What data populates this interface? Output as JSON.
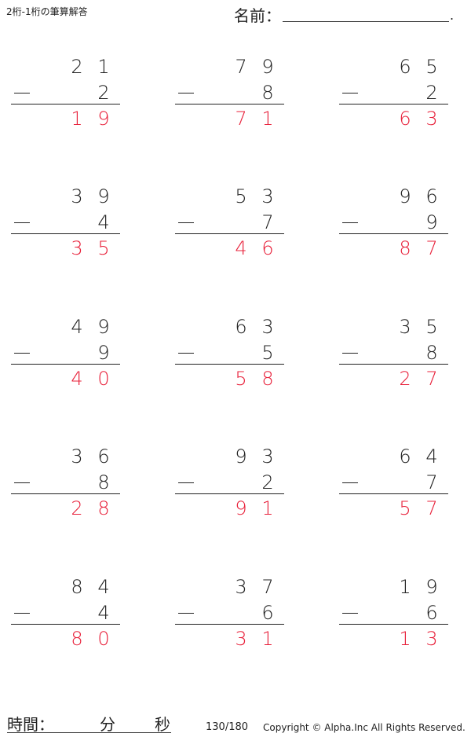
{
  "header": {
    "title": "2桁-1桁の筆算解答",
    "name_label": "名前：",
    "name_end": "."
  },
  "problems": [
    {
      "top": [
        "2",
        "1"
      ],
      "bottom": "2",
      "answer": [
        "1",
        "9"
      ]
    },
    {
      "top": [
        "7",
        "9"
      ],
      "bottom": "8",
      "answer": [
        "7",
        "1"
      ]
    },
    {
      "top": [
        "6",
        "5"
      ],
      "bottom": "2",
      "answer": [
        "6",
        "3"
      ]
    },
    {
      "top": [
        "3",
        "9"
      ],
      "bottom": "4",
      "answer": [
        "3",
        "5"
      ]
    },
    {
      "top": [
        "5",
        "3"
      ],
      "bottom": "7",
      "answer": [
        "4",
        "6"
      ]
    },
    {
      "top": [
        "9",
        "6"
      ],
      "bottom": "9",
      "answer": [
        "8",
        "7"
      ]
    },
    {
      "top": [
        "4",
        "9"
      ],
      "bottom": "9",
      "answer": [
        "4",
        "0"
      ]
    },
    {
      "top": [
        "6",
        "3"
      ],
      "bottom": "5",
      "answer": [
        "5",
        "8"
      ]
    },
    {
      "top": [
        "3",
        "5"
      ],
      "bottom": "8",
      "answer": [
        "2",
        "7"
      ]
    },
    {
      "top": [
        "3",
        "6"
      ],
      "bottom": "8",
      "answer": [
        "2",
        "8"
      ]
    },
    {
      "top": [
        "9",
        "3"
      ],
      "bottom": "2",
      "answer": [
        "9",
        "1"
      ]
    },
    {
      "top": [
        "6",
        "4"
      ],
      "bottom": "7",
      "answer": [
        "5",
        "7"
      ]
    },
    {
      "top": [
        "8",
        "4"
      ],
      "bottom": "4",
      "answer": [
        "8",
        "0"
      ]
    },
    {
      "top": [
        "3",
        "7"
      ],
      "bottom": "6",
      "answer": [
        "3",
        "1"
      ]
    },
    {
      "top": [
        "1",
        "9"
      ],
      "bottom": "6",
      "answer": [
        "1",
        "3"
      ]
    }
  ],
  "colors": {
    "answer": "#e8203a",
    "text": "#222222"
  },
  "footer": {
    "time_label": "時間：",
    "minutes": "分",
    "seconds": "秒",
    "page": "130/180",
    "copyright": "Copyright © Alpha.Inc All Rights Reserved."
  }
}
